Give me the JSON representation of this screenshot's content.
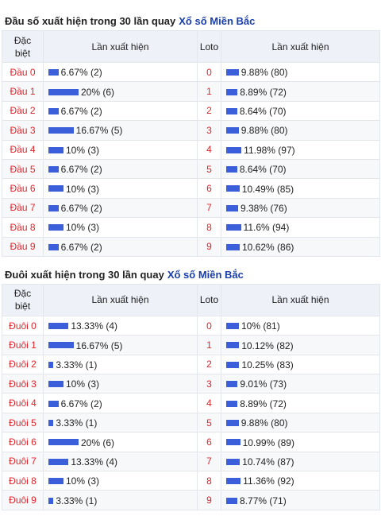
{
  "dau": {
    "title_prefix": "Đầu số xuất hiện trong 30 lần quay",
    "title_link": "Xổ số Miền Bắc",
    "headers": {
      "col1": "Đặc biệt",
      "col2": "Lần xuất hiện",
      "col3": "Loto",
      "col4": "Lần xuất hiện"
    },
    "rows": [
      {
        "label": "Đầu 0",
        "special": "6.67% (2)",
        "special_pct": 6.67,
        "loto": "0",
        "loto_text": "9.88% (80)",
        "loto_pct": 9.88
      },
      {
        "label": "Đầu 1",
        "special": "20% (6)",
        "special_pct": 20,
        "loto": "1",
        "loto_text": "8.89% (72)",
        "loto_pct": 8.89
      },
      {
        "label": "Đầu 2",
        "special": "6.67% (2)",
        "special_pct": 6.67,
        "loto": "2",
        "loto_text": "8.64% (70)",
        "loto_pct": 8.64
      },
      {
        "label": "Đầu 3",
        "special": "16.67% (5)",
        "special_pct": 16.67,
        "loto": "3",
        "loto_text": "9.88% (80)",
        "loto_pct": 9.88
      },
      {
        "label": "Đầu 4",
        "special": "10% (3)",
        "special_pct": 10,
        "loto": "4",
        "loto_text": "11.98% (97)",
        "loto_pct": 11.98
      },
      {
        "label": "Đầu 5",
        "special": "6.67% (2)",
        "special_pct": 6.67,
        "loto": "5",
        "loto_text": "8.64% (70)",
        "loto_pct": 8.64
      },
      {
        "label": "Đầu 6",
        "special": "10% (3)",
        "special_pct": 10,
        "loto": "6",
        "loto_text": "10.49% (85)",
        "loto_pct": 10.49
      },
      {
        "label": "Đầu 7",
        "special": "6.67% (2)",
        "special_pct": 6.67,
        "loto": "7",
        "loto_text": "9.38% (76)",
        "loto_pct": 9.38
      },
      {
        "label": "Đầu 8",
        "special": "10% (3)",
        "special_pct": 10,
        "loto": "8",
        "loto_text": "11.6% (94)",
        "loto_pct": 11.6
      },
      {
        "label": "Đầu 9",
        "special": "6.67% (2)",
        "special_pct": 6.67,
        "loto": "9",
        "loto_text": "10.62% (86)",
        "loto_pct": 10.62
      }
    ]
  },
  "duoi": {
    "title_prefix": "Đuôi xuất hiện trong 30 lần quay",
    "title_link": "Xổ số Miền Bắc",
    "headers": {
      "col1": "Đặc biệt",
      "col2": "Lần xuất hiện",
      "col3": "Loto",
      "col4": "Lần xuất hiện"
    },
    "rows": [
      {
        "label": "Đuôi 0",
        "special": "13.33% (4)",
        "special_pct": 13.33,
        "loto": "0",
        "loto_text": "10% (81)",
        "loto_pct": 10
      },
      {
        "label": "Đuôi 1",
        "special": "16.67% (5)",
        "special_pct": 16.67,
        "loto": "1",
        "loto_text": "10.12% (82)",
        "loto_pct": 10.12
      },
      {
        "label": "Đuôi 2",
        "special": "3.33% (1)",
        "special_pct": 3.33,
        "loto": "2",
        "loto_text": "10.25% (83)",
        "loto_pct": 10.25
      },
      {
        "label": "Đuôi 3",
        "special": "10% (3)",
        "special_pct": 10,
        "loto": "3",
        "loto_text": "9.01% (73)",
        "loto_pct": 9.01
      },
      {
        "label": "Đuôi 4",
        "special": "6.67% (2)",
        "special_pct": 6.67,
        "loto": "4",
        "loto_text": "8.89% (72)",
        "loto_pct": 8.89
      },
      {
        "label": "Đuôi 5",
        "special": "3.33% (1)",
        "special_pct": 3.33,
        "loto": "5",
        "loto_text": "9.88% (80)",
        "loto_pct": 9.88
      },
      {
        "label": "Đuôi 6",
        "special": "20% (6)",
        "special_pct": 20,
        "loto": "6",
        "loto_text": "10.99% (89)",
        "loto_pct": 10.99
      },
      {
        "label": "Đuôi 7",
        "special": "13.33% (4)",
        "special_pct": 13.33,
        "loto": "7",
        "loto_text": "10.74% (87)",
        "loto_pct": 10.74
      },
      {
        "label": "Đuôi 8",
        "special": "10% (3)",
        "special_pct": 10,
        "loto": "8",
        "loto_text": "11.36% (92)",
        "loto_pct": 11.36
      },
      {
        "label": "Đuôi 9",
        "special": "3.33% (1)",
        "special_pct": 3.33,
        "loto": "9",
        "loto_text": "8.77% (71)",
        "loto_pct": 8.77
      }
    ]
  },
  "colors": {
    "bar": "#3b5fdb",
    "label": "#e0242b",
    "link": "#1a3fa8",
    "header_bg": "#eef1f8"
  }
}
